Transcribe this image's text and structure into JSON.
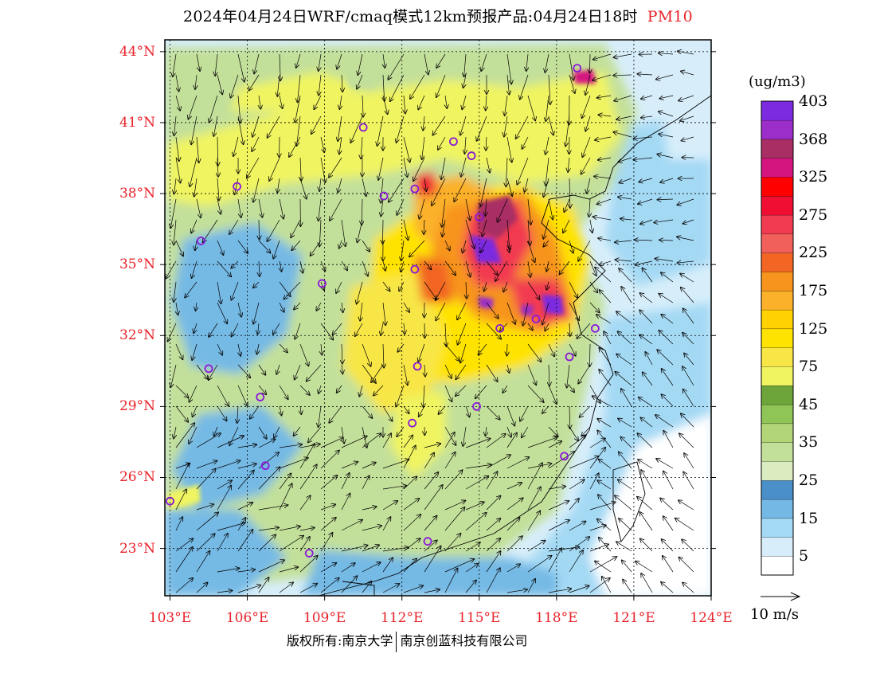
{
  "title": {
    "main": "2024年04月24日WRF/cmaq模式12km预报产品:04月24日18时",
    "pollutant": "PM10"
  },
  "axes": {
    "lat_ticks": [
      {
        "label": "44°N",
        "value": 44
      },
      {
        "label": "41°N",
        "value": 41
      },
      {
        "label": "38°N",
        "value": 38
      },
      {
        "label": "35°N",
        "value": 35
      },
      {
        "label": "32°N",
        "value": 32
      },
      {
        "label": "29°N",
        "value": 29
      },
      {
        "label": "26°N",
        "value": 26
      },
      {
        "label": "23°N",
        "value": 23
      }
    ],
    "lon_ticks": [
      {
        "label": "103°E",
        "value": 103
      },
      {
        "label": "106°E",
        "value": 106
      },
      {
        "label": "109°E",
        "value": 109
      },
      {
        "label": "112°E",
        "value": 112
      },
      {
        "label": "115°E",
        "value": 115
      },
      {
        "label": "118°E",
        "value": 118
      },
      {
        "label": "121°E",
        "value": 121
      },
      {
        "label": "124°E",
        "value": 124
      }
    ],
    "lat_range": [
      21,
      44.5
    ],
    "lon_range": [
      102.8,
      124
    ]
  },
  "colorbar": {
    "unit": "(ug/m3)",
    "colors": [
      "#ffffff",
      "#d7eefa",
      "#a4d9f4",
      "#74b9e5",
      "#4a8fc8",
      "#dcecc1",
      "#c3e09a",
      "#b2d677",
      "#8fc456",
      "#6da53a",
      "#f0f460",
      "#f8e646",
      "#ffe300",
      "#ffd200",
      "#fbb12a",
      "#f7941d",
      "#f26522",
      "#f2605b",
      "#f23b51",
      "#f00e32",
      "#ff0000",
      "#d4157f",
      "#a82e63",
      "#9b2dc8",
      "#7c2be0"
    ],
    "labels": [
      "5",
      "15",
      "25",
      "35",
      "45",
      "75",
      "125",
      "175",
      "225",
      "275",
      "325",
      "368",
      "403"
    ]
  },
  "stations": [
    {
      "lon": 118.8,
      "lat": 43.3
    },
    {
      "lon": 110.5,
      "lat": 40.8
    },
    {
      "lon": 114.0,
      "lat": 40.2
    },
    {
      "lon": 114.7,
      "lat": 39.6
    },
    {
      "lon": 112.5,
      "lat": 38.2
    },
    {
      "lon": 111.3,
      "lat": 37.9
    },
    {
      "lon": 105.6,
      "lat": 38.3
    },
    {
      "lon": 104.2,
      "lat": 36.0
    },
    {
      "lon": 115.0,
      "lat": 37.0
    },
    {
      "lon": 112.5,
      "lat": 34.8
    },
    {
      "lon": 108.9,
      "lat": 34.2
    },
    {
      "lon": 117.2,
      "lat": 32.7
    },
    {
      "lon": 115.8,
      "lat": 32.3
    },
    {
      "lon": 119.5,
      "lat": 32.3
    },
    {
      "lon": 118.5,
      "lat": 31.1
    },
    {
      "lon": 112.6,
      "lat": 30.7
    },
    {
      "lon": 104.5,
      "lat": 30.6
    },
    {
      "lon": 106.5,
      "lat": 29.4
    },
    {
      "lon": 114.9,
      "lat": 29.0
    },
    {
      "lon": 112.4,
      "lat": 28.3
    },
    {
      "lon": 118.3,
      "lat": 26.9
    },
    {
      "lon": 106.7,
      "lat": 26.5
    },
    {
      "lon": 103.0,
      "lat": 25.0
    },
    {
      "lon": 108.4,
      "lat": 22.8
    },
    {
      "lon": 113.0,
      "lat": 23.3
    }
  ],
  "reference_vector": {
    "label": "10 m/s",
    "speed": 10
  },
  "footer": {
    "copyright": "版权所有:南京大学",
    "company": "南京创蓝科技有限公司"
  }
}
